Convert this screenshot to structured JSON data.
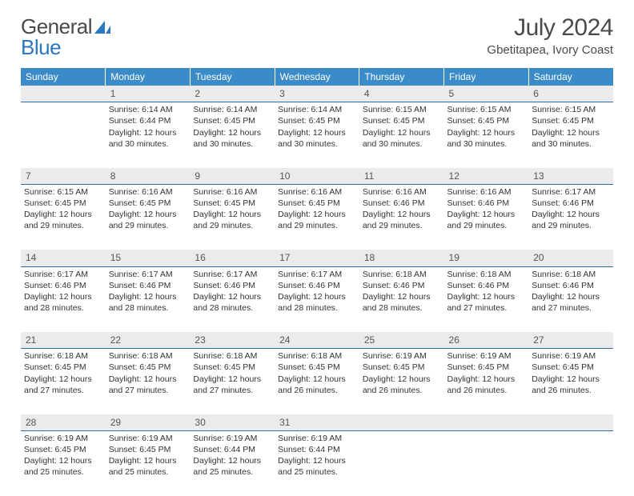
{
  "brand": {
    "part1": "General",
    "part2": "Blue"
  },
  "title": "July 2024",
  "location": "Gbetitapea, Ivory Coast",
  "colors": {
    "header_bg": "#3b8bc8",
    "header_text": "#ffffff",
    "daynum_bg": "#ebebeb",
    "daynum_border": "#2f6fa8",
    "body_text": "#333333",
    "logo_gray": "#4a4a4a",
    "logo_blue": "#2b77c0"
  },
  "weekdays": [
    "Sunday",
    "Monday",
    "Tuesday",
    "Wednesday",
    "Thursday",
    "Friday",
    "Saturday"
  ],
  "weeks": [
    [
      {
        "day": "",
        "sunrise": "",
        "sunset": "",
        "daylight": ""
      },
      {
        "day": "1",
        "sunrise": "Sunrise: 6:14 AM",
        "sunset": "Sunset: 6:44 PM",
        "daylight": "Daylight: 12 hours and 30 minutes."
      },
      {
        "day": "2",
        "sunrise": "Sunrise: 6:14 AM",
        "sunset": "Sunset: 6:45 PM",
        "daylight": "Daylight: 12 hours and 30 minutes."
      },
      {
        "day": "3",
        "sunrise": "Sunrise: 6:14 AM",
        "sunset": "Sunset: 6:45 PM",
        "daylight": "Daylight: 12 hours and 30 minutes."
      },
      {
        "day": "4",
        "sunrise": "Sunrise: 6:15 AM",
        "sunset": "Sunset: 6:45 PM",
        "daylight": "Daylight: 12 hours and 30 minutes."
      },
      {
        "day": "5",
        "sunrise": "Sunrise: 6:15 AM",
        "sunset": "Sunset: 6:45 PM",
        "daylight": "Daylight: 12 hours and 30 minutes."
      },
      {
        "day": "6",
        "sunrise": "Sunrise: 6:15 AM",
        "sunset": "Sunset: 6:45 PM",
        "daylight": "Daylight: 12 hours and 30 minutes."
      }
    ],
    [
      {
        "day": "7",
        "sunrise": "Sunrise: 6:15 AM",
        "sunset": "Sunset: 6:45 PM",
        "daylight": "Daylight: 12 hours and 29 minutes."
      },
      {
        "day": "8",
        "sunrise": "Sunrise: 6:16 AM",
        "sunset": "Sunset: 6:45 PM",
        "daylight": "Daylight: 12 hours and 29 minutes."
      },
      {
        "day": "9",
        "sunrise": "Sunrise: 6:16 AM",
        "sunset": "Sunset: 6:45 PM",
        "daylight": "Daylight: 12 hours and 29 minutes."
      },
      {
        "day": "10",
        "sunrise": "Sunrise: 6:16 AM",
        "sunset": "Sunset: 6:45 PM",
        "daylight": "Daylight: 12 hours and 29 minutes."
      },
      {
        "day": "11",
        "sunrise": "Sunrise: 6:16 AM",
        "sunset": "Sunset: 6:46 PM",
        "daylight": "Daylight: 12 hours and 29 minutes."
      },
      {
        "day": "12",
        "sunrise": "Sunrise: 6:16 AM",
        "sunset": "Sunset: 6:46 PM",
        "daylight": "Daylight: 12 hours and 29 minutes."
      },
      {
        "day": "13",
        "sunrise": "Sunrise: 6:17 AM",
        "sunset": "Sunset: 6:46 PM",
        "daylight": "Daylight: 12 hours and 29 minutes."
      }
    ],
    [
      {
        "day": "14",
        "sunrise": "Sunrise: 6:17 AM",
        "sunset": "Sunset: 6:46 PM",
        "daylight": "Daylight: 12 hours and 28 minutes."
      },
      {
        "day": "15",
        "sunrise": "Sunrise: 6:17 AM",
        "sunset": "Sunset: 6:46 PM",
        "daylight": "Daylight: 12 hours and 28 minutes."
      },
      {
        "day": "16",
        "sunrise": "Sunrise: 6:17 AM",
        "sunset": "Sunset: 6:46 PM",
        "daylight": "Daylight: 12 hours and 28 minutes."
      },
      {
        "day": "17",
        "sunrise": "Sunrise: 6:17 AM",
        "sunset": "Sunset: 6:46 PM",
        "daylight": "Daylight: 12 hours and 28 minutes."
      },
      {
        "day": "18",
        "sunrise": "Sunrise: 6:18 AM",
        "sunset": "Sunset: 6:46 PM",
        "daylight": "Daylight: 12 hours and 28 minutes."
      },
      {
        "day": "19",
        "sunrise": "Sunrise: 6:18 AM",
        "sunset": "Sunset: 6:46 PM",
        "daylight": "Daylight: 12 hours and 27 minutes."
      },
      {
        "day": "20",
        "sunrise": "Sunrise: 6:18 AM",
        "sunset": "Sunset: 6:46 PM",
        "daylight": "Daylight: 12 hours and 27 minutes."
      }
    ],
    [
      {
        "day": "21",
        "sunrise": "Sunrise: 6:18 AM",
        "sunset": "Sunset: 6:45 PM",
        "daylight": "Daylight: 12 hours and 27 minutes."
      },
      {
        "day": "22",
        "sunrise": "Sunrise: 6:18 AM",
        "sunset": "Sunset: 6:45 PM",
        "daylight": "Daylight: 12 hours and 27 minutes."
      },
      {
        "day": "23",
        "sunrise": "Sunrise: 6:18 AM",
        "sunset": "Sunset: 6:45 PM",
        "daylight": "Daylight: 12 hours and 27 minutes."
      },
      {
        "day": "24",
        "sunrise": "Sunrise: 6:18 AM",
        "sunset": "Sunset: 6:45 PM",
        "daylight": "Daylight: 12 hours and 26 minutes."
      },
      {
        "day": "25",
        "sunrise": "Sunrise: 6:19 AM",
        "sunset": "Sunset: 6:45 PM",
        "daylight": "Daylight: 12 hours and 26 minutes."
      },
      {
        "day": "26",
        "sunrise": "Sunrise: 6:19 AM",
        "sunset": "Sunset: 6:45 PM",
        "daylight": "Daylight: 12 hours and 26 minutes."
      },
      {
        "day": "27",
        "sunrise": "Sunrise: 6:19 AM",
        "sunset": "Sunset: 6:45 PM",
        "daylight": "Daylight: 12 hours and 26 minutes."
      }
    ],
    [
      {
        "day": "28",
        "sunrise": "Sunrise: 6:19 AM",
        "sunset": "Sunset: 6:45 PM",
        "daylight": "Daylight: 12 hours and 25 minutes."
      },
      {
        "day": "29",
        "sunrise": "Sunrise: 6:19 AM",
        "sunset": "Sunset: 6:45 PM",
        "daylight": "Daylight: 12 hours and 25 minutes."
      },
      {
        "day": "30",
        "sunrise": "Sunrise: 6:19 AM",
        "sunset": "Sunset: 6:44 PM",
        "daylight": "Daylight: 12 hours and 25 minutes."
      },
      {
        "day": "31",
        "sunrise": "Sunrise: 6:19 AM",
        "sunset": "Sunset: 6:44 PM",
        "daylight": "Daylight: 12 hours and 25 minutes."
      },
      {
        "day": "",
        "sunrise": "",
        "sunset": "",
        "daylight": ""
      },
      {
        "day": "",
        "sunrise": "",
        "sunset": "",
        "daylight": ""
      },
      {
        "day": "",
        "sunrise": "",
        "sunset": "",
        "daylight": ""
      }
    ]
  ]
}
